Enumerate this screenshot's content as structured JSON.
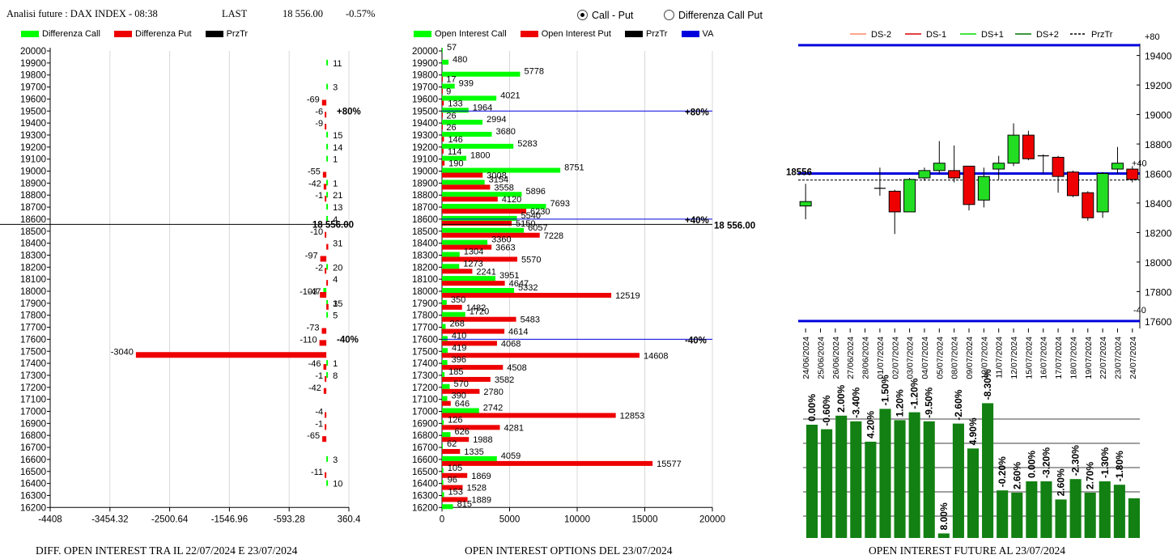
{
  "header": {
    "title": "Analisi future : DAX INDEX - 08:38",
    "last_label": "LAST",
    "last_value": "18 556.00",
    "change": "-0.57%"
  },
  "radio": {
    "call_put": "Call - Put",
    "diff_call_put": "Differenza Call Put",
    "selected": "call_put"
  },
  "legend_left": [
    {
      "label": "Differenza Call",
      "color": "#00ff00"
    },
    {
      "label": "Differenza Put",
      "color": "#ee0000"
    },
    {
      "label": "PrzTr",
      "color": "#000000"
    }
  ],
  "legend_mid": [
    {
      "label": "Open Interest Call",
      "color": "#00ff00"
    },
    {
      "label": "Open Interest Put",
      "color": "#ee0000"
    },
    {
      "label": "PrzTr",
      "color": "#000000"
    },
    {
      "label": "VA",
      "color": "#0000dd"
    }
  ],
  "legend_right": [
    {
      "label": "DS-2",
      "color": "#ff8866",
      "style": "solid"
    },
    {
      "label": "DS-1",
      "color": "#dd0000",
      "style": "solid"
    },
    {
      "label": "DS+1",
      "color": "#00dd00",
      "style": "solid"
    },
    {
      "label": "DS+2",
      "color": "#007700",
      "style": "solid"
    },
    {
      "label": "PrzTr",
      "color": "#000000",
      "style": "dashed"
    }
  ],
  "captions": {
    "left": "DIFF. OPEN INTEREST TRA IL 22/07/2024 E 23/07/2024",
    "mid": "OPEN INTEREST OPTIONS DEL 23/07/2024",
    "right": "OPEN INTEREST FUTURE AL 23/07/2024"
  },
  "colors": {
    "call": "#00ff00",
    "put": "#ee0000",
    "va": "#0000dd",
    "grid": "#d8d8d8",
    "oi_bar": "#128012"
  },
  "chart_data": [
    {
      "type": "bar",
      "orientation": "horizontal",
      "caption": "DIFF. OPEN INTEREST TRA IL 22/07/2024 E 23/07/2024",
      "categories": [
        20000,
        19900,
        19800,
        19700,
        19600,
        19500,
        19400,
        19300,
        19200,
        19100,
        19000,
        18900,
        18800,
        18700,
        18600,
        18500,
        18400,
        18300,
        18200,
        18100,
        18000,
        17900,
        17800,
        17700,
        17600,
        17500,
        17400,
        17300,
        17200,
        17100,
        17000,
        16900,
        16800,
        16700,
        16600,
        16500,
        16400,
        16300,
        16200
      ],
      "xticks": [
        "-4408",
        "-3454.32",
        "-2500.64",
        "-1546.96",
        "-593.28",
        "360.4"
      ],
      "xlim": [
        -4408,
        360.4
      ],
      "labels": [
        {
          "strike": 19900,
          "text": "11"
        },
        {
          "strike": 19700,
          "text": "3"
        },
        {
          "strike": 19600,
          "text": "-69"
        },
        {
          "strike": 19500,
          "text": "-6"
        },
        {
          "strike": 19400,
          "text": "-9"
        },
        {
          "strike": 19300,
          "text": "15"
        },
        {
          "strike": 19200,
          "text": "14"
        },
        {
          "strike": 19100,
          "text": "1"
        },
        {
          "strike": 19000,
          "text": "-55"
        },
        {
          "strike": 18900,
          "text": "-42"
        },
        {
          "strike": 18900,
          "text": "1"
        },
        {
          "strike": 18800,
          "text": "-1"
        },
        {
          "strike": 18800,
          "text": "21"
        },
        {
          "strike": 18700,
          "text": "13"
        },
        {
          "strike": 18600,
          "text": "4"
        },
        {
          "strike": 18500,
          "text": "-10"
        },
        {
          "strike": 18400,
          "text": "31"
        },
        {
          "strike": 18300,
          "text": "-97"
        },
        {
          "strike": 18200,
          "text": "-2"
        },
        {
          "strike": 18200,
          "text": "20"
        },
        {
          "strike": 18100,
          "text": "4"
        },
        {
          "strike": 18000,
          "text": "-47"
        },
        {
          "strike": 18000,
          "text": "-103"
        },
        {
          "strike": 17900,
          "text": "1"
        },
        {
          "strike": 17900,
          "text": "35"
        },
        {
          "strike": 17800,
          "text": "5"
        },
        {
          "strike": 17700,
          "text": "-73"
        },
        {
          "strike": 17600,
          "text": "-110"
        },
        {
          "strike": 17500,
          "text": "-3040"
        },
        {
          "strike": 17400,
          "text": "1"
        },
        {
          "strike": 17400,
          "text": "-46"
        },
        {
          "strike": 17300,
          "text": "-1"
        },
        {
          "strike": 17300,
          "text": "8"
        },
        {
          "strike": 17200,
          "text": "-42"
        },
        {
          "strike": 17000,
          "text": "-4"
        },
        {
          "strike": 16900,
          "text": "-1"
        },
        {
          "strike": 16800,
          "text": "-65"
        },
        {
          "strike": 16600,
          "text": "3"
        },
        {
          "strike": 16500,
          "text": "-11"
        },
        {
          "strike": 16400,
          "text": "10"
        }
      ],
      "call_diff": [
        0,
        11,
        0,
        3,
        0,
        0,
        0,
        15,
        14,
        1,
        0,
        1,
        21,
        13,
        4,
        0,
        0,
        0,
        20,
        0,
        -47,
        1,
        5,
        0,
        0,
        0,
        1,
        8,
        0,
        0,
        0,
        0,
        0,
        0,
        3,
        0,
        10,
        0,
        0
      ],
      "put_diff": [
        0,
        0,
        0,
        0,
        -69,
        -6,
        -9,
        0,
        0,
        0,
        -55,
        -42,
        -1,
        0,
        0,
        -10,
        31,
        -97,
        -2,
        4,
        -103,
        35,
        0,
        -73,
        -110,
        -3040,
        -46,
        -1,
        -42,
        0,
        -4,
        -1,
        -65,
        0,
        0,
        -11,
        0,
        0,
        0
      ],
      "annotations": [
        {
          "strike": 19500,
          "text": "+80%"
        },
        {
          "strike": 17600,
          "text": "-40%"
        },
        {
          "strike": 18556,
          "text": "18 556.00"
        }
      ]
    },
    {
      "type": "bar",
      "orientation": "horizontal",
      "caption": "OPEN INTEREST OPTIONS DEL 23/07/2024",
      "categories": [
        20000,
        19900,
        19800,
        19700,
        19600,
        19500,
        19400,
        19300,
        19200,
        19100,
        19000,
        18900,
        18800,
        18700,
        18600,
        18500,
        18400,
        18300,
        18200,
        18100,
        18000,
        17900,
        17800,
        17700,
        17600,
        17500,
        17400,
        17300,
        17200,
        17100,
        17000,
        16900,
        16800,
        16700,
        16600,
        16500,
        16400,
        16300,
        16200
      ],
      "xticks": [
        "0",
        "5000",
        "10000",
        "15000",
        "20000"
      ],
      "xlim": [
        0,
        20000
      ],
      "series": [
        {
          "name": "Open Interest Call",
          "values": [
            57,
            480,
            5778,
            939,
            4021,
            1964,
            2994,
            3680,
            5283,
            1800,
            8751,
            3154,
            5896,
            7693,
            5540,
            6057,
            3360,
            1304,
            1273,
            3951,
            5332,
            350,
            1720,
            268,
            410,
            419,
            396,
            185,
            570,
            390,
            2742,
            126,
            626,
            62,
            4059,
            105,
            96,
            153,
            815
          ]
        },
        {
          "name": "Open Interest Put",
          "values": [
            0,
            0,
            17,
            9,
            133,
            26,
            26,
            146,
            114,
            190,
            3008,
            3558,
            4120,
            6230,
            5150,
            7228,
            3663,
            5570,
            2241,
            4647,
            12519,
            1482,
            5483,
            4614,
            4068,
            14608,
            4508,
            3582,
            2780,
            646,
            12853,
            4281,
            1988,
            1335,
            15577,
            1869,
            1528,
            1889,
            0
          ]
        }
      ],
      "annotations": [
        {
          "strike": 19500,
          "text": "+80%"
        },
        {
          "strike": 18600,
          "text": "+40%"
        },
        {
          "strike": 17600,
          "text": "-40%"
        },
        {
          "strike": 18556,
          "text": "18 556.00"
        }
      ]
    },
    {
      "type": "candlestick",
      "dates": [
        "24/06/2024",
        "25/06/2024",
        "26/06/2024",
        "27/06/2024",
        "28/06/2024",
        "01/07/2024",
        "02/07/2024",
        "03/07/2024",
        "04/07/2024",
        "05/07/2024",
        "08/07/2024",
        "09/07/2024",
        "10/07/2024",
        "11/07/2024",
        "12/07/2024",
        "15/07/2024",
        "16/07/2024",
        "17/07/2024",
        "18/07/2024",
        "19/07/2024",
        "22/07/2024",
        "23/07/2024",
        "24/07/2024"
      ],
      "yticks": [
        17600,
        17800,
        18000,
        18200,
        18400,
        18600,
        18800,
        19000,
        19200,
        19400
      ],
      "ylim": [
        17550,
        19480
      ],
      "price_label": "18556",
      "price": 18556,
      "upper_line": 19470,
      "upper_label": "+80",
      "lower_line": 17600,
      "lower_label": "-40",
      "mid_line": 18600,
      "mid_label": "+40",
      "candles": [
        {
          "date": "24/06/2024",
          "open": 18380,
          "close": 18410,
          "high": 18530,
          "low": 18290,
          "dir": "up"
        },
        {
          "date": "25/06/2024",
          "open": null,
          "close": null,
          "high": null,
          "low": null,
          "dir": "none"
        },
        {
          "date": "26/06/2024",
          "open": null,
          "close": null,
          "high": null,
          "low": null,
          "dir": "none"
        },
        {
          "date": "27/06/2024",
          "open": null,
          "close": null,
          "high": null,
          "low": null,
          "dir": "none"
        },
        {
          "date": "28/06/2024",
          "open": null,
          "close": null,
          "high": null,
          "low": null,
          "dir": "none"
        },
        {
          "date": "01/07/2024",
          "open": 18500,
          "close": 18500,
          "high": 18640,
          "low": 18450,
          "dir": "doji"
        },
        {
          "date": "02/07/2024",
          "open": 18480,
          "close": 18340,
          "high": 18490,
          "low": 18190,
          "dir": "down"
        },
        {
          "date": "03/07/2024",
          "open": 18340,
          "close": 18560,
          "high": 18570,
          "low": 18340,
          "dir": "up"
        },
        {
          "date": "04/07/2024",
          "open": 18570,
          "close": 18620,
          "high": 18640,
          "low": 18550,
          "dir": "up"
        },
        {
          "date": "05/07/2024",
          "open": 18620,
          "close": 18670,
          "high": 18820,
          "low": 18600,
          "dir": "up"
        },
        {
          "date": "08/07/2024",
          "open": 18620,
          "close": 18570,
          "high": 18790,
          "low": 18540,
          "dir": "down"
        },
        {
          "date": "09/07/2024",
          "open": 18650,
          "close": 18390,
          "high": 18650,
          "low": 18350,
          "dir": "down"
        },
        {
          "date": "10/07/2024",
          "open": 18420,
          "close": 18580,
          "high": 18640,
          "low": 18370,
          "dir": "up"
        },
        {
          "date": "11/07/2024",
          "open": 18630,
          "close": 18670,
          "high": 18720,
          "low": 18560,
          "dir": "up"
        },
        {
          "date": "12/07/2024",
          "open": 18670,
          "close": 18860,
          "high": 18940,
          "low": 18650,
          "dir": "up"
        },
        {
          "date": "15/07/2024",
          "open": 18860,
          "close": 18700,
          "high": 18890,
          "low": 18690,
          "dir": "down"
        },
        {
          "date": "16/07/2024",
          "open": 18720,
          "close": 18720,
          "high": 18730,
          "low": 18600,
          "dir": "doji"
        },
        {
          "date": "17/07/2024",
          "open": 18710,
          "close": 18580,
          "high": 18720,
          "low": 18470,
          "dir": "down"
        },
        {
          "date": "18/07/2024",
          "open": 18610,
          "close": 18450,
          "high": 18620,
          "low": 18440,
          "dir": "down"
        },
        {
          "date": "19/07/2024",
          "open": 18470,
          "close": 18300,
          "high": 18480,
          "low": 18280,
          "dir": "down"
        },
        {
          "date": "22/07/2024",
          "open": 18340,
          "close": 18600,
          "high": 18610,
          "low": 18300,
          "dir": "up"
        },
        {
          "date": "23/07/2024",
          "open": 18630,
          "close": 18670,
          "high": 18780,
          "low": 18600,
          "dir": "up"
        },
        {
          "date": "24/07/2024",
          "open": 18630,
          "close": 18560,
          "high": 18650,
          "low": 18540,
          "dir": "down"
        }
      ]
    },
    {
      "type": "bar",
      "caption": "OPEN INTEREST FUTURE AL 23/07/2024",
      "categories": [
        "24/06/2024",
        "25/06/2024",
        "26/06/2024",
        "27/06/2024",
        "28/06/2024",
        "01/07/2024",
        "02/07/2024",
        "03/07/2024",
        "04/07/2024",
        "05/07/2024",
        "08/07/2024",
        "09/07/2024",
        "10/07/2024",
        "11/07/2024",
        "12/07/2024",
        "15/07/2024",
        "16/07/2024",
        "17/07/2024",
        "18/07/2024",
        "19/07/2024",
        "22/07/2024",
        "23/07/2024",
        "24/07/2024"
      ],
      "values": [
        100,
        96,
        108,
        103,
        85,
        114,
        104,
        111,
        103,
        4,
        101,
        79,
        119,
        42,
        40,
        50,
        50,
        34,
        52,
        40,
        50,
        47,
        35
      ],
      "labels": [
        "0.00%",
        "-0.60%",
        "2.00%",
        "-3.40%",
        "4.20%",
        "-1.50%",
        "1.20%",
        "-1.20%",
        "-9.50%",
        "8.00%",
        "-2.60%",
        "4.90%",
        "-8.30%",
        "-0.20%",
        "2.60%",
        "0.00%",
        "-3.20%",
        "2.60%",
        "-2.30%",
        "2.70%",
        "-1.30%",
        "-1.80%",
        ""
      ]
    }
  ]
}
